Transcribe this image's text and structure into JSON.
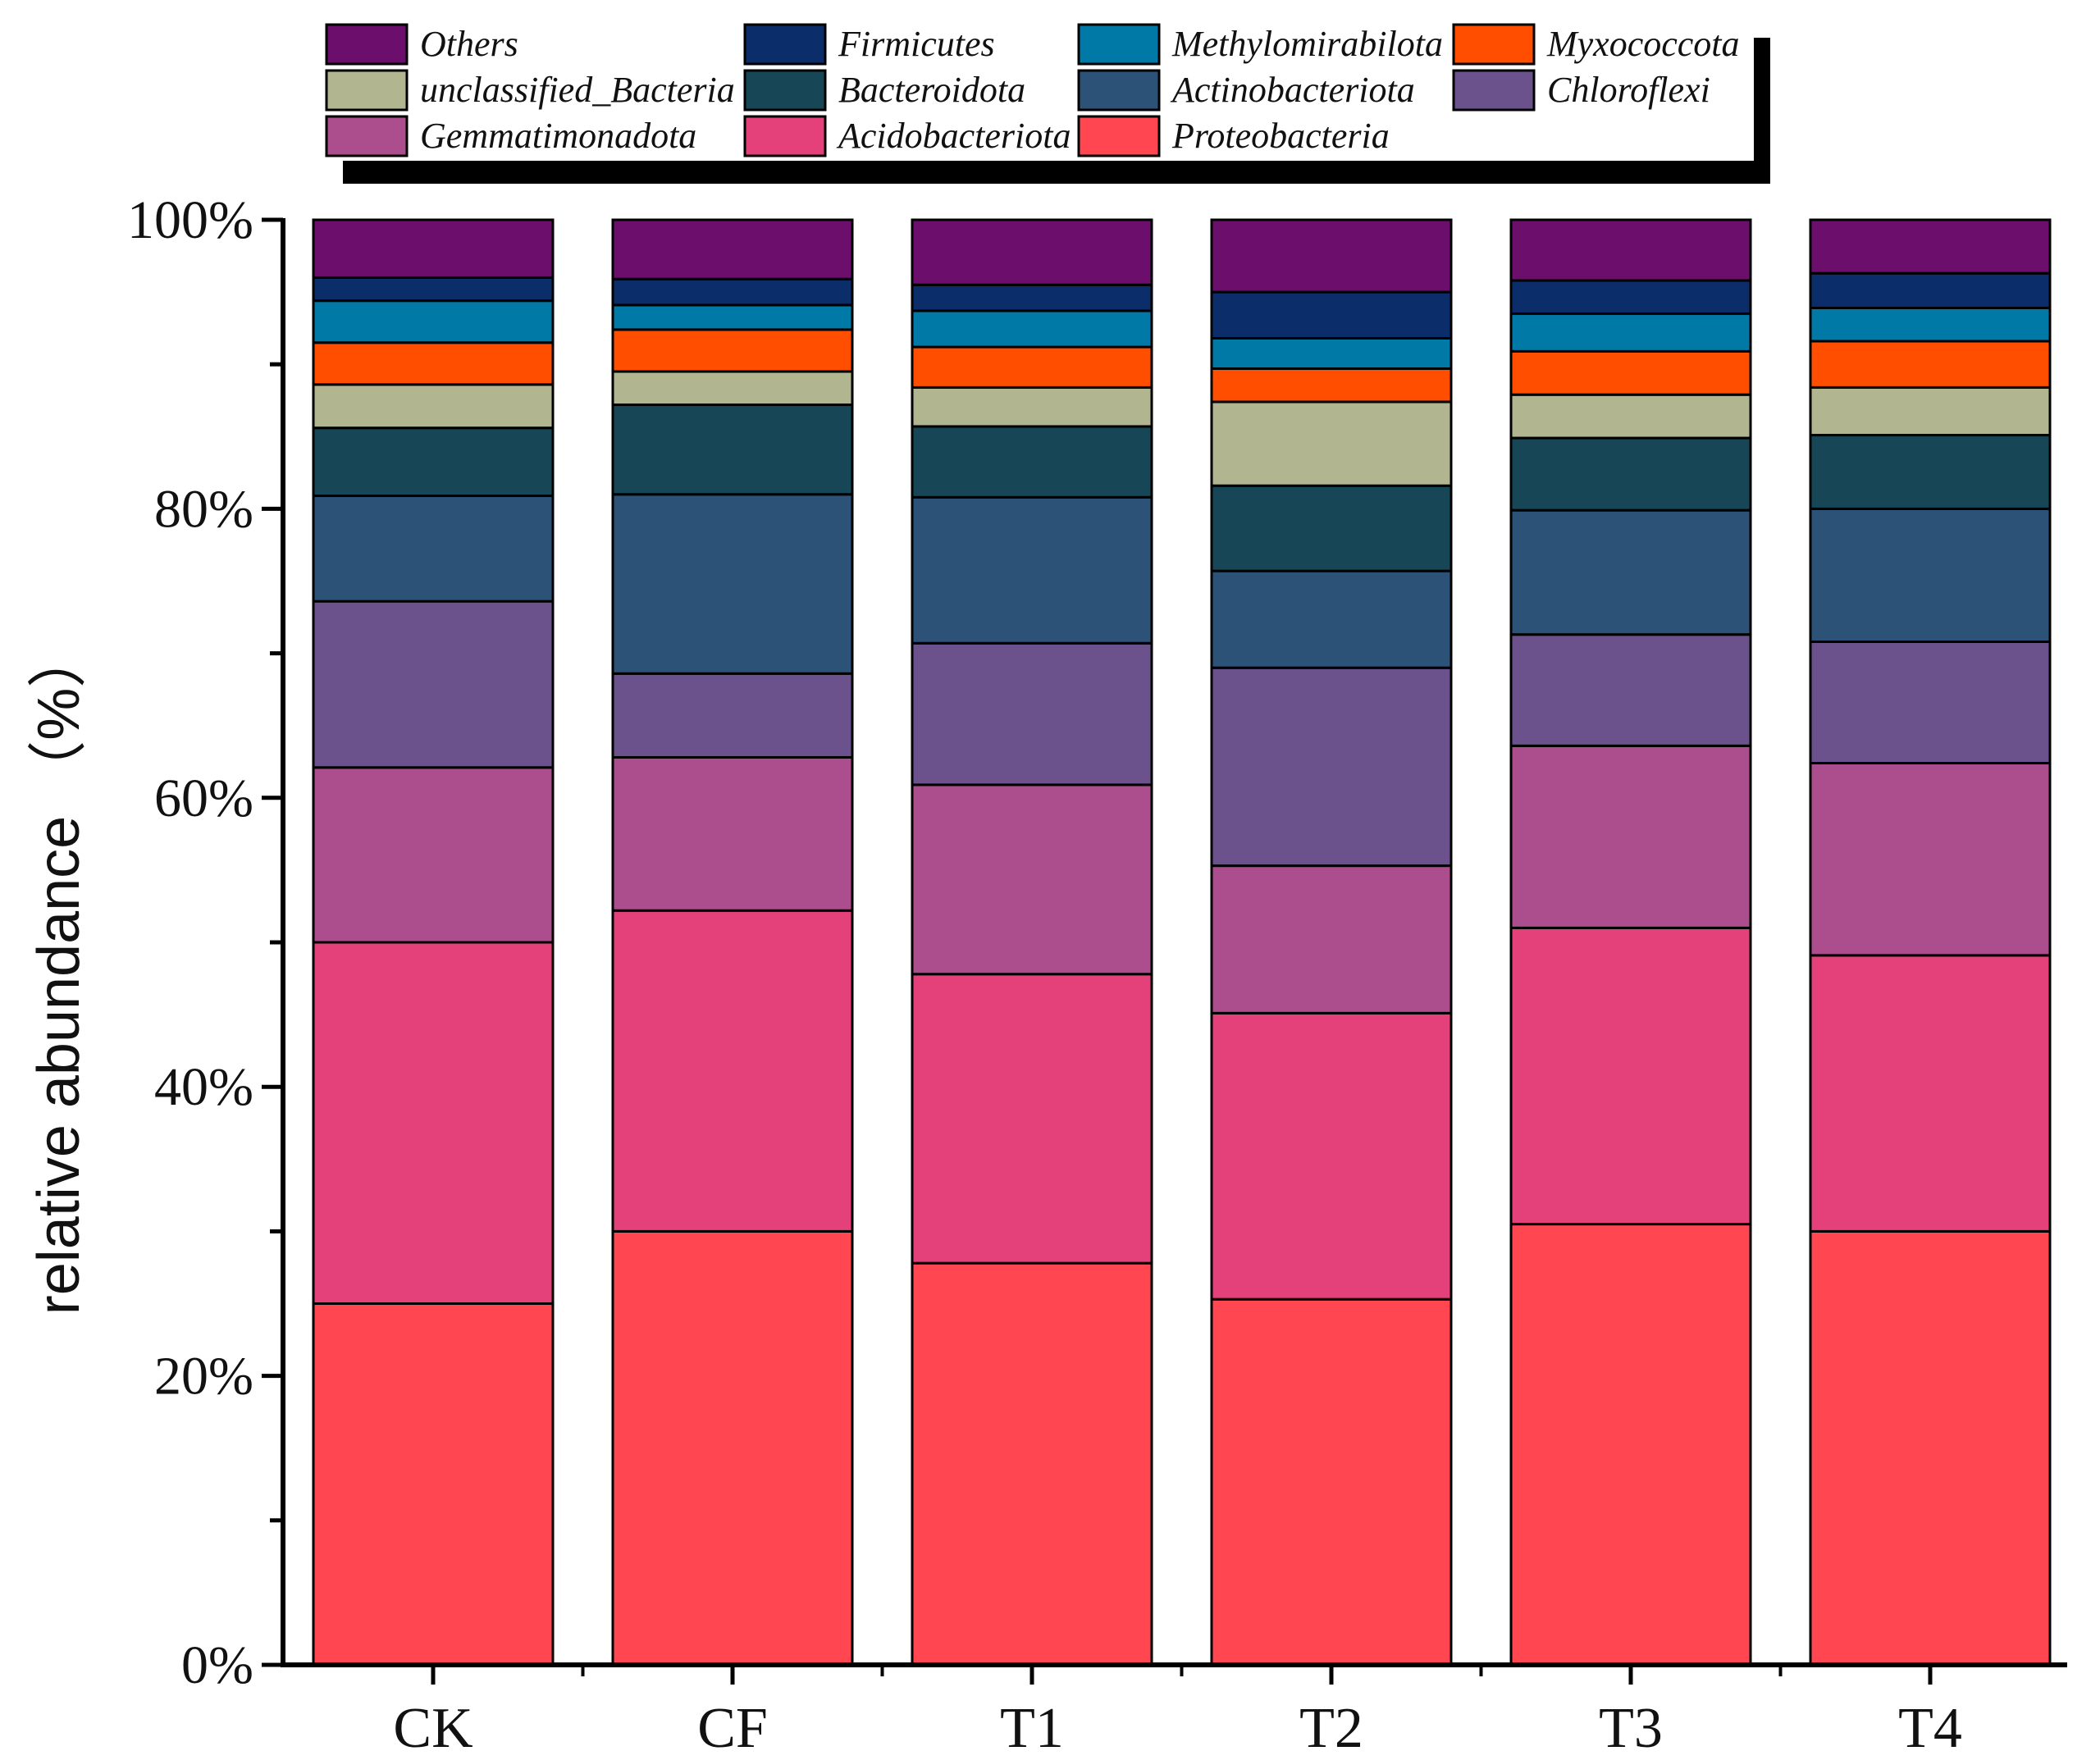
{
  "chart_data": {
    "type": "bar",
    "stacked": true,
    "title": "",
    "xlabel": "",
    "ylabel": "relative abundance （%）",
    "ylim": [
      0,
      100
    ],
    "y_ticks": [
      "0%",
      "20%",
      "40%",
      "60%",
      "80%",
      "100%"
    ],
    "categories": [
      "CK",
      "CF",
      "T1",
      "T2",
      "T3",
      "T4"
    ],
    "series": [
      {
        "name": "Proteobacteria",
        "color": "#FF4651",
        "values": [
          25.0,
          30.0,
          27.8,
          25.3,
          30.5,
          30.0
        ]
      },
      {
        "name": "Acidobacteriota",
        "color": "#E4417B",
        "values": [
          25.0,
          22.2,
          20.0,
          19.8,
          20.5,
          19.1
        ]
      },
      {
        "name": "Gemmatimonadota",
        "color": "#AC4D8E",
        "values": [
          12.1,
          10.6,
          13.1,
          10.2,
          12.6,
          13.3
        ]
      },
      {
        "name": "Chloroflexi",
        "color": "#6B528D",
        "values": [
          11.5,
          5.8,
          9.8,
          13.7,
          7.7,
          8.4
        ]
      },
      {
        "name": "Actinobacteriota",
        "color": "#2D5278",
        "values": [
          7.3,
          12.4,
          10.1,
          6.7,
          8.6,
          9.2
        ]
      },
      {
        "name": "Bacteroidota",
        "color": "#174756",
        "values": [
          4.7,
          6.2,
          4.9,
          5.9,
          5.0,
          5.1
        ]
      },
      {
        "name": "unclassified_Bacteria",
        "color": "#B2B690",
        "values": [
          3.0,
          2.3,
          2.7,
          5.8,
          3.0,
          3.3
        ]
      },
      {
        "name": "Myxococcota",
        "color": "#FF4E00",
        "values": [
          2.9,
          2.9,
          2.8,
          2.3,
          3.0,
          3.2
        ]
      },
      {
        "name": "Methylomirabilota",
        "color": "#0079A7",
        "values": [
          2.9,
          1.7,
          2.5,
          2.1,
          2.6,
          2.3
        ]
      },
      {
        "name": "Firmicutes",
        "color": "#0B2E6B",
        "values": [
          1.6,
          1.8,
          1.8,
          3.2,
          2.3,
          2.4
        ]
      },
      {
        "name": "Others",
        "color": "#6B0E6C",
        "values": [
          4.0,
          4.1,
          4.5,
          5.0,
          4.2,
          3.7
        ]
      }
    ],
    "legend": {
      "position": "top",
      "order": [
        "Others",
        "Firmicutes",
        "Methylomirabilota",
        "Myxococcota",
        "unclassified_Bacteria",
        "Bacteroidota",
        "Actinobacteriota",
        "Chloroflexi",
        "Gemmatimonadota",
        "Acidobacteriota",
        "Proteobacteria"
      ]
    },
    "grid": false
  }
}
